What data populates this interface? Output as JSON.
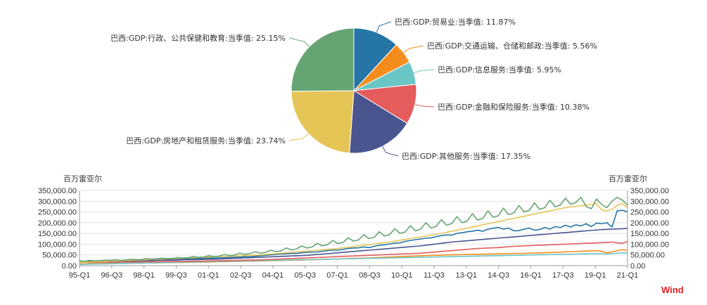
{
  "chart_data": [
    {
      "type": "pie",
      "title": "",
      "slices": [
        {
          "label": "巴西:GDP:贸易业:当季值: 11.87%",
          "value": 11.87,
          "color": "#2575a6"
        },
        {
          "label": "巴西:GDP:交通运输、仓储和邮政:当季值: 5.56%",
          "value": 5.56,
          "color": "#f58d1d"
        },
        {
          "label": "巴西:GDP:信息服务:当季值: 5.95%",
          "value": 5.95,
          "color": "#6ac6c5"
        },
        {
          "label": "巴西:GDP:金融和保险服务:当季值: 10.38%",
          "value": 10.38,
          "color": "#e45c5c"
        },
        {
          "label": "巴西:GDP:其他服务:当季值: 17.35%",
          "value": 17.35,
          "color": "#4a5590"
        },
        {
          "label": "巴西:GDP:房地产和租赁服务:当季值: 23.74%",
          "value": 23.74,
          "color": "#e6c557"
        },
        {
          "label": "巴西:GDP:行政、公共保健和教育:当季值: 25.15%",
          "value": 25.15,
          "color": "#67a474"
        }
      ]
    },
    {
      "type": "line",
      "title": "",
      "ylabel_left": "百万雷亚尔",
      "ylabel_right": "百万雷亚尔",
      "ylim": [
        0,
        350000
      ],
      "yticks": [
        "0.00",
        "50,000.00",
        "100,000.00",
        "150,000.00",
        "200,000.00",
        "250,000.00",
        "300,000.00",
        "350,000.00"
      ],
      "xlabels": [
        "95-Q1",
        "96-Q3",
        "98-Q1",
        "99-Q3",
        "01-Q1",
        "02-Q3",
        "04-Q1",
        "05-Q3",
        "07-Q1",
        "08-Q3",
        "10-Q1",
        "11-Q3",
        "13-Q1",
        "14-Q3",
        "16-Q1",
        "17-Q3",
        "19-Q1",
        "21-Q1"
      ],
      "series": [
        {
          "name": "贸易业",
          "color": "#2575a6",
          "values": [
            22000,
            20000,
            21000,
            22000,
            23000,
            24000,
            25000,
            26000,
            24000,
            25000,
            24000,
            25000,
            26000,
            27000,
            27000,
            28000,
            27000,
            29000,
            29000,
            30000,
            31000,
            32000,
            32000,
            33000,
            34000,
            35000,
            35000,
            36000,
            37000,
            38000,
            39000,
            40000,
            42000,
            41000,
            44000,
            46000,
            48000,
            50000,
            52000,
            54000,
            55000,
            57000,
            57000,
            60000,
            62000,
            63000,
            64000,
            67000,
            70000,
            72000,
            72000,
            76000,
            80000,
            82000,
            83000,
            87000,
            84000,
            90000,
            95000,
            97000,
            101000,
            105000,
            106000,
            113000,
            117000,
            121000,
            124000,
            128000,
            129000,
            135000,
            140000,
            143000,
            142000,
            150000,
            153000,
            158000,
            160000,
            165000,
            160000,
            170000,
            174000,
            178000,
            170000,
            175000,
            162000,
            163000,
            170000,
            175000,
            165000,
            168000,
            178000,
            170000,
            182000,
            177000,
            188000,
            180000,
            190000,
            185000,
            195000,
            182000,
            198000,
            195000,
            200000,
            180000,
            255000,
            258000,
            250000
          ]
        },
        {
          "name": "交通运输、仓储和邮政",
          "color": "#f58d1d",
          "values": [
            9000,
            9000,
            9500,
            9500,
            10000,
            10000,
            10500,
            11000,
            11000,
            11500,
            11500,
            12000,
            12000,
            12500,
            13000,
            13000,
            13500,
            14000,
            14000,
            14500,
            15000,
            15500,
            16000,
            16000,
            16500,
            17000,
            17500,
            18000,
            18000,
            19000,
            19500,
            20000,
            20500,
            21000,
            21500,
            22000,
            22500,
            23000,
            23500,
            24000,
            24500,
            25000,
            25500,
            26000,
            27000,
            27500,
            28000,
            29000,
            30000,
            30500,
            31000,
            32000,
            33000,
            34000,
            34500,
            35000,
            36000,
            37000,
            38000,
            39000,
            40000,
            41000,
            42000,
            43000,
            44000,
            45000,
            46000,
            47000,
            47500,
            48000,
            49000,
            50000,
            50500,
            51000,
            51500,
            52000,
            52500,
            53000,
            53500,
            54000,
            54500,
            55000,
            55500,
            56000,
            56500,
            57000,
            57500,
            58000,
            58500,
            59000,
            60000,
            61000,
            62000,
            63000,
            64000,
            65000,
            66000,
            67000,
            68000,
            69000,
            70000,
            66000,
            60000,
            64000,
            70000,
            74000,
            72000
          ]
        },
        {
          "name": "信息服务",
          "color": "#6ac6c5",
          "values": [
            6000,
            6500,
            7000,
            7500,
            8000,
            8500,
            9000,
            9500,
            10000,
            10500,
            11000,
            11500,
            12000,
            12500,
            13000,
            13500,
            14000,
            14500,
            15000,
            15500,
            16000,
            16500,
            17000,
            17500,
            18000,
            18500,
            19000,
            19500,
            20000,
            20500,
            21000,
            21500,
            22000,
            22500,
            23000,
            23500,
            24000,
            24500,
            25000,
            25500,
            26000,
            26500,
            27000,
            27500,
            28000,
            28500,
            29000,
            29500,
            30000,
            30500,
            31000,
            31500,
            32000,
            32500,
            33000,
            33500,
            34000,
            34500,
            35000,
            35500,
            36000,
            36500,
            37000,
            37500,
            38000,
            38500,
            39000,
            39500,
            40000,
            40500,
            41000,
            41500,
            42000,
            42500,
            43000,
            43500,
            44000,
            44500,
            45000,
            45500,
            46000,
            46500,
            47000,
            47500,
            48000,
            48500,
            49000,
            49500,
            50000,
            50500,
            51000,
            51500,
            52000,
            52500,
            53000,
            53500,
            54000,
            54500,
            55000,
            55500,
            56000,
            55000,
            54000,
            56000,
            58000,
            60000,
            58000
          ]
        },
        {
          "name": "金融和保险服务",
          "color": "#e45c5c",
          "values": [
            16000,
            16500,
            15000,
            15500,
            16000,
            16500,
            15500,
            16000,
            16500,
            17000,
            17500,
            17000,
            17500,
            18000,
            18500,
            18000,
            18500,
            19000,
            19500,
            20000,
            19500,
            20000,
            20500,
            21000,
            21500,
            22000,
            22500,
            23000,
            23500,
            24000,
            24500,
            25000,
            25500,
            26000,
            26500,
            27000,
            28000,
            29000,
            30000,
            31000,
            32000,
            33000,
            34000,
            35000,
            36000,
            37000,
            38000,
            39000,
            40000,
            41000,
            42000,
            43000,
            44000,
            45000,
            46000,
            47000,
            48000,
            49000,
            50000,
            51000,
            52000,
            53000,
            54000,
            55000,
            56000,
            57000,
            58000,
            60000,
            62000,
            64000,
            66000,
            68000,
            70000,
            72000,
            74000,
            76000,
            78000,
            80000,
            81000,
            82000,
            83000,
            84000,
            86000,
            88000,
            90000,
            91000,
            92000,
            93000,
            94000,
            95000,
            96000,
            97000,
            98000,
            99000,
            100000,
            101000,
            102000,
            103000,
            104000,
            105000,
            106000,
            107000,
            108000,
            110000,
            106000,
            104000,
            112000
          ]
        },
        {
          "name": "其他服务",
          "color": "#4a5590",
          "values": [
            17000,
            17500,
            18000,
            18500,
            19000,
            19500,
            20000,
            20500,
            21000,
            21500,
            22000,
            22500,
            23000,
            23500,
            24000,
            24500,
            25000,
            25500,
            26000,
            26500,
            27000,
            27500,
            28000,
            28500,
            29000,
            29500,
            30000,
            31000,
            32000,
            33000,
            34000,
            35000,
            36000,
            37000,
            38000,
            39000,
            40000,
            41000,
            42000,
            43000,
            44000,
            45000,
            46000,
            47000,
            48000,
            50000,
            52000,
            54000,
            56000,
            58000,
            60000,
            62000,
            64000,
            66000,
            68000,
            70000,
            72000,
            74000,
            76000,
            78000,
            80000,
            82000,
            84000,
            86000,
            88000,
            90000,
            92000,
            95000,
            98000,
            101000,
            104000,
            107000,
            110000,
            112000,
            114000,
            116000,
            118000,
            120000,
            122000,
            124000,
            126000,
            128000,
            130000,
            132000,
            134000,
            136000,
            138000,
            140000,
            142000,
            144000,
            146000,
            148000,
            150000,
            152000,
            154000,
            156000,
            158000,
            160000,
            162000,
            164000,
            166000,
            168000,
            169000,
            170000,
            171000,
            172000,
            174000
          ]
        },
        {
          "name": "房地产和租赁服务",
          "color": "#e6c557",
          "values": [
            15000,
            16000,
            17000,
            18000,
            19000,
            20000,
            21000,
            22000,
            23000,
            24000,
            25000,
            26000,
            27000,
            28000,
            29000,
            30000,
            31000,
            32000,
            33000,
            34000,
            35000,
            36000,
            37000,
            38000,
            39000,
            40000,
            41000,
            42000,
            43000,
            44000,
            45000,
            46000,
            47000,
            48000,
            49000,
            50000,
            52000,
            54000,
            56000,
            58000,
            60000,
            62000,
            64000,
            66000,
            68000,
            70000,
            72000,
            74000,
            76000,
            78000,
            80000,
            83000,
            86000,
            89000,
            92000,
            95000,
            98000,
            101000,
            104000,
            107000,
            110000,
            114000,
            118000,
            122000,
            126000,
            130000,
            134000,
            138000,
            142000,
            146000,
            150000,
            155000,
            160000,
            165000,
            170000,
            175000,
            180000,
            185000,
            190000,
            195000,
            200000,
            205000,
            210000,
            215000,
            220000,
            225000,
            230000,
            235000,
            240000,
            245000,
            250000,
            255000,
            260000,
            265000,
            270000,
            273000,
            276000,
            279000,
            282000,
            285000,
            288000,
            260000,
            255000,
            262000,
            280000,
            290000,
            270000
          ]
        },
        {
          "name": "行政、公共保健和教育",
          "color": "#67a474",
          "values": [
            21000,
            20000,
            25000,
            22000,
            23000,
            26000,
            24000,
            28000,
            25000,
            27000,
            30000,
            28000,
            29000,
            33000,
            30000,
            32000,
            35000,
            33000,
            34000,
            38000,
            36000,
            37000,
            42000,
            39000,
            40000,
            46000,
            42000,
            44000,
            52000,
            47000,
            49000,
            58000,
            53000,
            56000,
            65000,
            58000,
            62000,
            72000,
            65000,
            69000,
            82000,
            73000,
            78000,
            92000,
            82000,
            87000,
            104000,
            92000,
            98000,
            117000,
            103000,
            108000,
            130000,
            114000,
            120000,
            144000,
            126000,
            132000,
            158000,
            138000,
            145000,
            172000,
            150000,
            157000,
            186000,
            162000,
            170000,
            200000,
            175000,
            183000,
            214000,
            188000,
            196000,
            228000,
            200000,
            208000,
            242000,
            212000,
            220000,
            255000,
            225000,
            232000,
            268000,
            238000,
            245000,
            280000,
            250000,
            258000,
            292000,
            262000,
            270000,
            304000,
            274000,
            282000,
            314000,
            286000,
            294000,
            318000,
            275000,
            265000,
            310000,
            285000,
            270000,
            300000,
            318000,
            305000,
            282000
          ]
        }
      ]
    }
  ],
  "brand": "Wind"
}
